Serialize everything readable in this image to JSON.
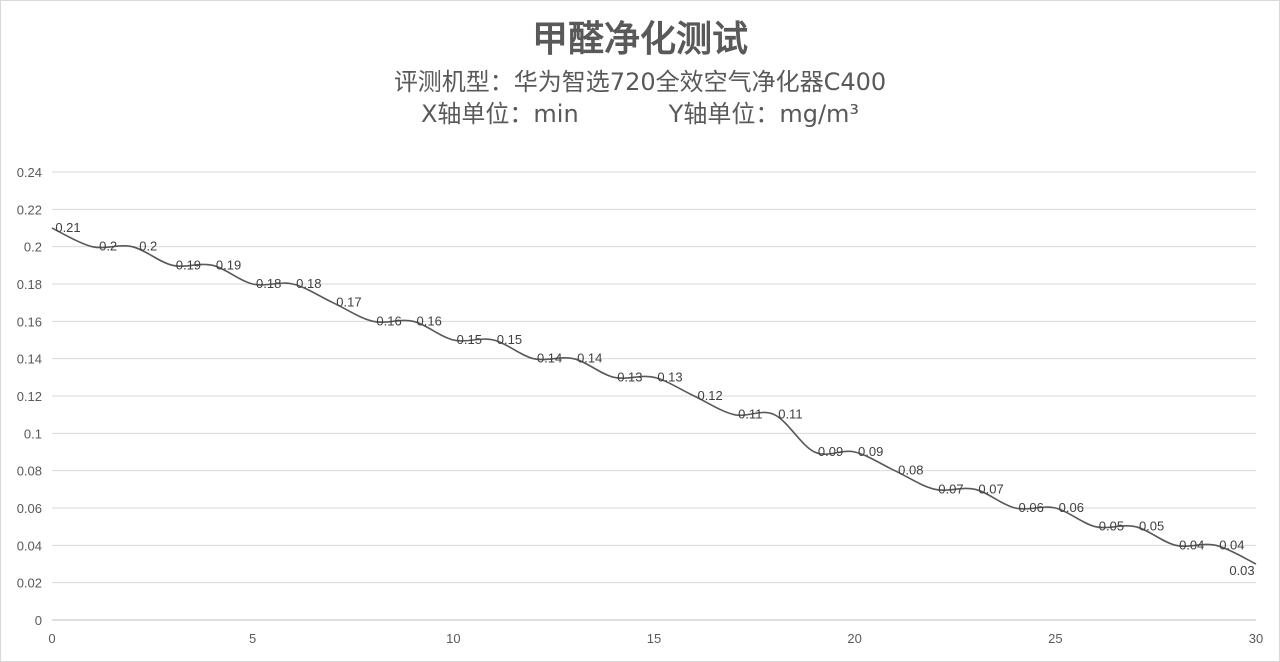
{
  "chart_data": {
    "type": "line",
    "title": "甲醛净化测试",
    "subtitle_model": "评测机型：华为智选720全效空气净化器C400",
    "x_unit_label": "X轴单位：min",
    "y_unit_label": "Y轴单位：mg/m³",
    "xlim": [
      0,
      30
    ],
    "ylim": [
      0,
      0.24
    ],
    "x_ticks": [
      "0",
      "5",
      "10",
      "15",
      "20",
      "25",
      "30"
    ],
    "y_ticks": [
      "0",
      "0.02",
      "0.04",
      "0.06",
      "0.08",
      "0.1",
      "0.12",
      "0.14",
      "0.16",
      "0.18",
      "0.2",
      "0.22",
      "0.24"
    ],
    "grid": true,
    "series": [
      {
        "x": [
          0,
          1,
          2,
          3,
          4,
          5,
          6,
          7,
          8,
          9,
          10,
          11,
          12,
          13,
          14,
          15,
          16,
          17,
          18,
          19,
          20,
          21,
          22,
          23,
          24,
          25,
          26,
          27,
          28,
          29,
          30
        ],
        "values": [
          0.21,
          0.2,
          0.2,
          0.19,
          0.19,
          0.18,
          0.18,
          0.17,
          0.16,
          0.16,
          0.15,
          0.15,
          0.14,
          0.14,
          0.13,
          0.13,
          0.12,
          0.11,
          0.11,
          0.09,
          0.09,
          0.08,
          0.07,
          0.07,
          0.06,
          0.06,
          0.05,
          0.05,
          0.04,
          0.04,
          0.03
        ],
        "labels": [
          "0.21",
          "0.2",
          "0.2",
          "0.19",
          "0.19",
          "0.18",
          "0.18",
          "0.17",
          "0.16",
          "0.16",
          "0.15",
          "0.15",
          "0.14",
          "0.14",
          "0.13",
          "0.13",
          "0.12",
          "0.11",
          "0.11",
          "0.09",
          "0.09",
          "0.08",
          "0.07",
          "0.07",
          "0.06",
          "0.06",
          "0.05",
          "0.05",
          "0.04",
          "0.04",
          "0.03"
        ],
        "color": "#595959"
      }
    ]
  }
}
